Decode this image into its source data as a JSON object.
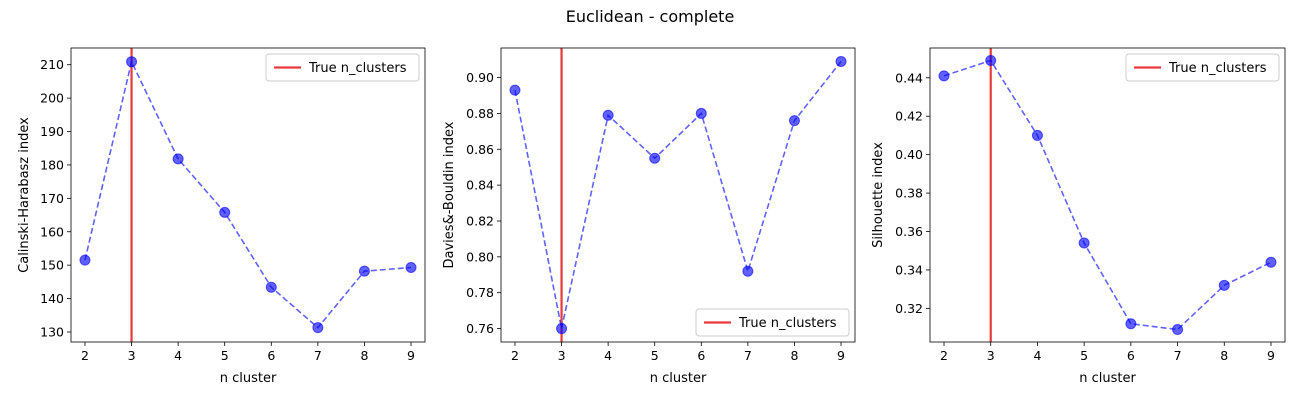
{
  "figure": {
    "title": "Euclidean - complete"
  },
  "colors": {
    "series": "#0000ff",
    "true_line": "#e83a3a",
    "axes": "#000000",
    "legend_border": "#cccccc"
  },
  "chart_data": [
    {
      "type": "line",
      "xlabel": "n cluster",
      "ylabel": "Calinski-Harabasz index",
      "x": [
        2,
        3,
        4,
        5,
        6,
        7,
        8,
        9
      ],
      "series": [
        {
          "values": [
            151.5,
            210.9,
            181.8,
            165.8,
            143.4,
            131.3,
            148.2,
            149.3
          ],
          "style": "dashed-line-with-circle-markers"
        }
      ],
      "true_n_clusters": 3,
      "legend": {
        "label": "True n_clusters",
        "placement": "top-right"
      },
      "xlim": [
        1.7,
        9.3
      ],
      "ylim": [
        127,
        215
      ],
      "xticks": [
        2,
        3,
        4,
        5,
        6,
        7,
        8,
        9
      ],
      "yticks": [
        130,
        140,
        150,
        160,
        170,
        180,
        190,
        200,
        210
      ],
      "grid": false
    },
    {
      "type": "line",
      "xlabel": "n cluster",
      "ylabel": "Davies&-Bouldin index",
      "x": [
        2,
        3,
        4,
        5,
        6,
        7,
        8,
        9
      ],
      "series": [
        {
          "values": [
            0.893,
            0.76,
            0.879,
            0.855,
            0.88,
            0.792,
            0.876,
            0.909
          ],
          "style": "dashed-line-with-circle-markers"
        }
      ],
      "true_n_clusters": 3,
      "legend": {
        "label": "True n_clusters",
        "placement": "bottom-right"
      },
      "xlim": [
        1.7,
        9.3
      ],
      "ylim": [
        0.7525,
        0.9165
      ],
      "xticks": [
        2,
        3,
        4,
        5,
        6,
        7,
        8,
        9
      ],
      "yticks": [
        0.76,
        0.78,
        0.8,
        0.82,
        0.84,
        0.86,
        0.88,
        0.9
      ],
      "ytick_decimals": 2,
      "grid": false
    },
    {
      "type": "line",
      "xlabel": "n cluster",
      "ylabel": "Silhouette index",
      "x": [
        2,
        3,
        4,
        5,
        6,
        7,
        8,
        9
      ],
      "series": [
        {
          "values": [
            0.441,
            0.449,
            0.41,
            0.354,
            0.312,
            0.309,
            0.332,
            0.344
          ],
          "style": "dashed-line-with-circle-markers"
        }
      ],
      "true_n_clusters": 3,
      "legend": {
        "label": "True n_clusters",
        "placement": "top-right"
      },
      "xlim": [
        1.7,
        9.3
      ],
      "ylim": [
        0.3025,
        0.4555
      ],
      "xticks": [
        2,
        3,
        4,
        5,
        6,
        7,
        8,
        9
      ],
      "yticks": [
        0.32,
        0.34,
        0.36,
        0.38,
        0.4,
        0.42,
        0.44
      ],
      "ytick_decimals": 2,
      "grid": false
    }
  ]
}
